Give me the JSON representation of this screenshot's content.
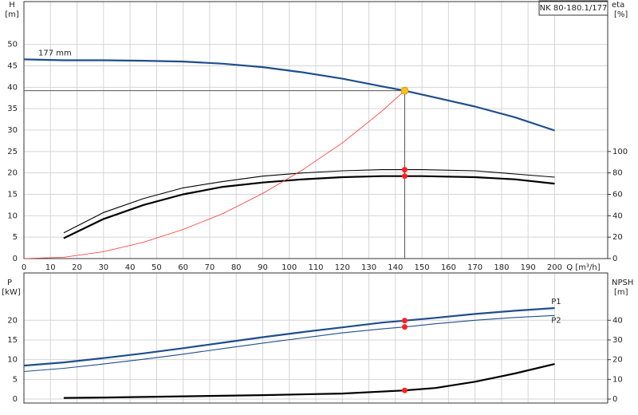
{
  "chart_data": [
    {
      "type": "line",
      "title": "NK 80-180.1/177",
      "ylabel": "H",
      "yunit": "[m]",
      "y2label": "eta",
      "y2unit": "[%]",
      "xlabel": "Q [m³/h]",
      "xlim": [
        0,
        220
      ],
      "xticks": [
        0,
        10,
        20,
        30,
        40,
        50,
        60,
        70,
        80,
        90,
        100,
        110,
        120,
        130,
        140,
        150,
        160,
        170,
        180,
        190,
        200
      ],
      "show_xtick_labels": true,
      "ylim": [
        0,
        60
      ],
      "yticks": [
        0,
        5,
        10,
        15,
        20,
        25,
        30,
        35,
        40,
        45,
        50
      ],
      "y2lim": [
        0,
        240
      ],
      "y2ticks": [
        0,
        20,
        40,
        60,
        80,
        100
      ],
      "grid": true,
      "series": [
        {
          "name": "177 mm",
          "label_at": "start",
          "color": "#1f4e8c",
          "style": "thick",
          "x": [
            0,
            15,
            30,
            45,
            60,
            75,
            90,
            105,
            120,
            135,
            143.5,
            155,
            170,
            185,
            200
          ],
          "values": [
            46.5,
            46.3,
            46.3,
            46.2,
            46,
            45.5,
            44.7,
            43.5,
            42,
            40.2,
            39.2,
            37.6,
            35.5,
            33,
            29.9
          ]
        },
        {
          "color": "#000000",
          "style": "thin",
          "axis": "y2",
          "x": [
            15,
            30,
            45,
            60,
            75,
            90,
            105,
            120,
            135,
            150,
            170,
            185,
            200
          ],
          "values": [
            24,
            43,
            56,
            66,
            72,
            77,
            80,
            82,
            83,
            83,
            82,
            79,
            76
          ]
        },
        {
          "color": "#000000",
          "style": "thick",
          "axis": "y2",
          "x": [
            15,
            30,
            45,
            60,
            75,
            90,
            105,
            120,
            135,
            150,
            170,
            185,
            200
          ],
          "values": [
            19,
            37,
            50,
            60,
            67,
            71,
            74,
            76,
            77,
            77,
            76,
            74,
            70
          ]
        },
        {
          "color": "#ff3030",
          "style": "hair",
          "x": [
            0,
            15,
            30,
            45,
            60,
            75,
            90,
            105,
            120,
            135,
            143.5
          ],
          "values": [
            0,
            0.3,
            1.6,
            3.8,
            6.8,
            10.5,
            15.2,
            20.7,
            27,
            34.5,
            39.2
          ]
        }
      ],
      "operating_point": {
        "x": 143.5,
        "y": 39.2,
        "color": "#ffc020"
      },
      "points": [
        {
          "x": 143.5,
          "y": 83,
          "axis": "y2",
          "color": "#ff2020"
        },
        {
          "x": 143.5,
          "y": 77,
          "axis": "y2",
          "color": "#ff2020"
        }
      ]
    },
    {
      "type": "line",
      "ylabel": "P",
      "yunit": "[kW]",
      "y2label": "NPSH",
      "y2unit": "[m]",
      "xlim": [
        0,
        220
      ],
      "xticks": [
        0,
        10,
        20,
        30,
        40,
        50,
        60,
        70,
        80,
        90,
        100,
        110,
        120,
        130,
        140,
        150,
        160,
        170,
        180,
        190,
        200
      ],
      "show_xtick_labels": false,
      "ylim": [
        -1,
        32
      ],
      "yticks": [
        0,
        5,
        10,
        15,
        20
      ],
      "y2lim": [
        -2,
        64
      ],
      "y2ticks": [
        0,
        10,
        20,
        30,
        40
      ],
      "grid": true,
      "series": [
        {
          "name": "P1",
          "label_at": "end",
          "color": "#1f4e8c",
          "style": "thick",
          "x": [
            0,
            15,
            30,
            45,
            60,
            75,
            90,
            105,
            120,
            135,
            143.5,
            155,
            170,
            185,
            200
          ],
          "values": [
            8.5,
            9.3,
            10.4,
            11.6,
            12.9,
            14.3,
            15.7,
            17,
            18.2,
            19.4,
            19.9,
            20.6,
            21.6,
            22.4,
            23.1
          ]
        },
        {
          "name": "P2",
          "label_at": "end",
          "color": "#1f4e8c",
          "style": "thin",
          "x": [
            0,
            15,
            30,
            45,
            60,
            75,
            90,
            105,
            120,
            135,
            143.5,
            155,
            170,
            185,
            200
          ],
          "values": [
            7,
            7.8,
            8.9,
            10.1,
            11.4,
            12.8,
            14.2,
            15.5,
            16.8,
            17.8,
            18.3,
            19.1,
            20,
            20.7,
            21.2
          ]
        },
        {
          "color": "#000000",
          "style": "thick",
          "axis": "y2",
          "x": [
            15,
            30,
            60,
            90,
            120,
            143.5,
            155,
            170,
            185,
            200
          ],
          "values": [
            0.6,
            0.8,
            1.4,
            2,
            2.8,
            4.4,
            5.6,
            8.8,
            13,
            17.8
          ]
        }
      ],
      "points": [
        {
          "x": 143.5,
          "y": 19.9,
          "color": "#ff2020"
        },
        {
          "x": 143.5,
          "y": 18.3,
          "color": "#ff2020"
        },
        {
          "x": 143.5,
          "y": 4.4,
          "axis": "y2",
          "color": "#ff2020"
        }
      ]
    }
  ]
}
